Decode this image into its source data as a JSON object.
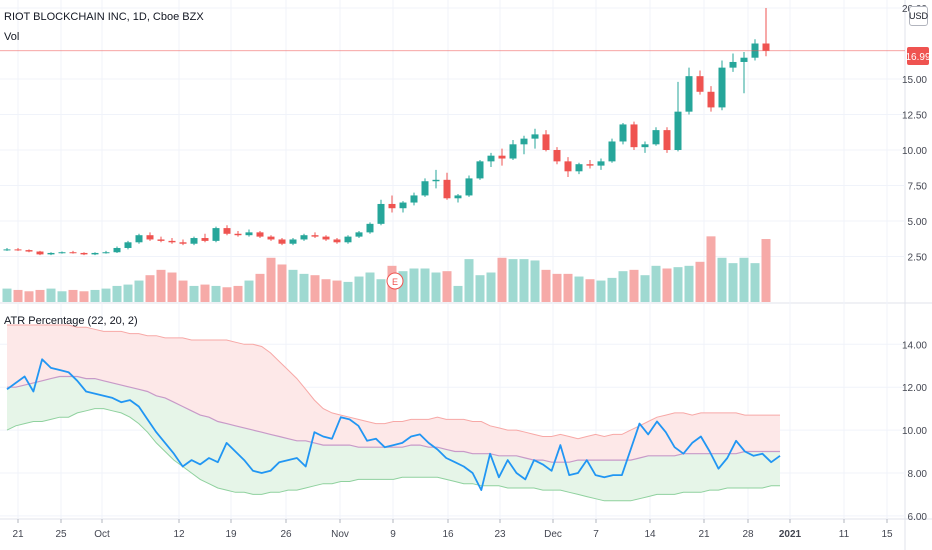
{
  "header": {
    "symbol": "RIOT BLOCKCHAIN INC, 1D, Cboe BZX",
    "volume_label": "Vol",
    "currency": "USD"
  },
  "indicator": {
    "label": "ATR Percentage (22, 20, 2)"
  },
  "earnings_marker": "E",
  "colors": {
    "up": "#26a69a",
    "down": "#ef5350",
    "vol_up": "#9fd9d1",
    "vol_down": "#f6aaa8",
    "atr_line": "#2196f3",
    "upper_band": "#f7a8a6",
    "lower_band": "#8fd19e",
    "mid_band": "#c89ac8",
    "upper_fill": "#fde8e8",
    "lower_fill": "#e6f5e8",
    "price_line": "#ef5350"
  },
  "chart_data": [
    {
      "type": "candlestick",
      "title": "RIOT BLOCKCHAIN INC, 1D, Cboe BZX",
      "x_ticks": [
        "21",
        "25",
        "Oct",
        "12",
        "19",
        "26",
        "Nov",
        "9",
        "16",
        "23",
        "Dec",
        "7",
        "14",
        "21",
        "28",
        "2021",
        "11",
        "15"
      ],
      "y_ticks": [
        "2.50",
        "5.00",
        "7.50",
        "10.00",
        "12.50",
        "15.00",
        "20.00"
      ],
      "ylim": [
        0,
        20
      ],
      "last_price": "16.99",
      "candles": [
        [
          3.0,
          3.1,
          2.9,
          3.0
        ],
        [
          3.0,
          3.1,
          2.9,
          2.95
        ],
        [
          2.95,
          3.0,
          2.8,
          2.85
        ],
        [
          2.85,
          2.9,
          2.6,
          2.65
        ],
        [
          2.65,
          2.8,
          2.6,
          2.75
        ],
        [
          2.75,
          2.85,
          2.7,
          2.8
        ],
        [
          2.8,
          2.9,
          2.7,
          2.75
        ],
        [
          2.75,
          2.8,
          2.6,
          2.65
        ],
        [
          2.65,
          2.8,
          2.6,
          2.75
        ],
        [
          2.75,
          2.9,
          2.7,
          2.8
        ],
        [
          2.8,
          3.2,
          2.75,
          3.1
        ],
        [
          3.1,
          3.6,
          3.0,
          3.5
        ],
        [
          3.5,
          4.1,
          3.4,
          4.0
        ],
        [
          4.0,
          4.2,
          3.6,
          3.7
        ],
        [
          3.7,
          3.9,
          3.5,
          3.6
        ],
        [
          3.6,
          3.8,
          3.4,
          3.5
        ],
        [
          3.5,
          3.7,
          3.3,
          3.4
        ],
        [
          3.4,
          3.9,
          3.3,
          3.8
        ],
        [
          3.8,
          4.1,
          3.5,
          3.6
        ],
        [
          3.6,
          4.6,
          3.5,
          4.5
        ],
        [
          4.5,
          4.7,
          4.0,
          4.1
        ],
        [
          4.1,
          4.3,
          3.9,
          4.0
        ],
        [
          4.0,
          4.4,
          3.9,
          4.2
        ],
        [
          4.2,
          4.3,
          3.8,
          3.9
        ],
        [
          3.9,
          4.0,
          3.6,
          3.7
        ],
        [
          3.7,
          3.8,
          3.3,
          3.4
        ],
        [
          3.4,
          3.8,
          3.3,
          3.7
        ],
        [
          3.7,
          4.1,
          3.6,
          4.0
        ],
        [
          4.0,
          4.2,
          3.8,
          3.9
        ],
        [
          3.9,
          4.0,
          3.6,
          3.7
        ],
        [
          3.7,
          3.8,
          3.4,
          3.5
        ],
        [
          3.5,
          4.0,
          3.4,
          3.9
        ],
        [
          3.9,
          4.3,
          3.8,
          4.2
        ],
        [
          4.2,
          4.9,
          4.1,
          4.8
        ],
        [
          4.8,
          6.5,
          4.7,
          6.2
        ],
        [
          6.2,
          6.8,
          5.6,
          5.9
        ],
        [
          5.9,
          6.4,
          5.6,
          6.3
        ],
        [
          6.3,
          7.0,
          6.1,
          6.8
        ],
        [
          6.8,
          8.0,
          6.7,
          7.8
        ],
        [
          7.8,
          8.6,
          7.3,
          7.9
        ],
        [
          7.9,
          8.4,
          6.5,
          6.6
        ],
        [
          6.6,
          6.9,
          6.3,
          6.8
        ],
        [
          6.8,
          8.2,
          6.7,
          8.0
        ],
        [
          8.0,
          9.3,
          7.9,
          9.2
        ],
        [
          9.2,
          9.8,
          8.8,
          9.6
        ],
        [
          9.6,
          10.1,
          8.9,
          9.4
        ],
        [
          9.4,
          10.7,
          9.3,
          10.4
        ],
        [
          10.4,
          11.0,
          9.7,
          10.8
        ],
        [
          10.8,
          11.5,
          10.1,
          11.1
        ],
        [
          11.1,
          11.4,
          9.9,
          10.0
        ],
        [
          10.0,
          10.2,
          9.0,
          9.2
        ],
        [
          9.2,
          9.5,
          8.1,
          8.5
        ],
        [
          8.5,
          9.1,
          8.3,
          9.0
        ],
        [
          9.0,
          9.3,
          8.7,
          8.9
        ],
        [
          8.9,
          9.4,
          8.6,
          9.2
        ],
        [
          9.2,
          10.8,
          9.1,
          10.6
        ],
        [
          10.6,
          11.9,
          10.4,
          11.8
        ],
        [
          11.8,
          12.0,
          10.0,
          10.2
        ],
        [
          10.2,
          10.6,
          9.8,
          10.4
        ],
        [
          10.4,
          11.6,
          10.3,
          11.4
        ],
        [
          11.4,
          11.6,
          9.8,
          10.0
        ],
        [
          10.0,
          14.8,
          9.9,
          12.7
        ],
        [
          12.7,
          15.8,
          12.5,
          15.2
        ],
        [
          15.2,
          15.6,
          13.9,
          14.1
        ],
        [
          14.1,
          14.5,
          12.7,
          13.0
        ],
        [
          13.0,
          16.3,
          12.8,
          15.8
        ],
        [
          15.8,
          16.8,
          15.5,
          16.2
        ],
        [
          16.2,
          16.9,
          14.0,
          16.5
        ],
        [
          16.5,
          17.8,
          16.3,
          17.5
        ],
        [
          17.5,
          20.0,
          16.6,
          16.99
        ]
      ]
    },
    {
      "type": "bar",
      "title": "Vol",
      "values": [
        1.0,
        0.9,
        0.8,
        0.9,
        1.0,
        0.8,
        0.9,
        0.8,
        0.9,
        1.0,
        1.2,
        1.3,
        1.6,
        2.0,
        2.4,
        2.2,
        1.6,
        1.2,
        1.3,
        1.2,
        1.1,
        1.2,
        1.6,
        2.1,
        3.3,
        2.8,
        2.4,
        2.1,
        2.0,
        1.7,
        1.6,
        1.5,
        1.9,
        2.2,
        1.7,
        2.7,
        2.3,
        2.5,
        2.5,
        2.2,
        2.3,
        1.2,
        3.2,
        2.0,
        2.2,
        3.3,
        3.2,
        3.2,
        3.1,
        2.4,
        2.1,
        2.1,
        1.9,
        1.7,
        1.6,
        1.8,
        2.3,
        2.4,
        2.0,
        2.7,
        2.5,
        2.6,
        2.7,
        3.0,
        4.9,
        3.3,
        2.9,
        3.3,
        2.9,
        4.7
      ],
      "directions": [
        "u",
        "d",
        "d",
        "d",
        "u",
        "u",
        "d",
        "d",
        "u",
        "u",
        "u",
        "u",
        "u",
        "d",
        "d",
        "d",
        "d",
        "u",
        "d",
        "u",
        "d",
        "d",
        "u",
        "d",
        "d",
        "d",
        "u",
        "u",
        "d",
        "d",
        "d",
        "u",
        "u",
        "u",
        "u",
        "d",
        "u",
        "u",
        "u",
        "u",
        "d",
        "u",
        "u",
        "u",
        "u",
        "d",
        "u",
        "u",
        "u",
        "d",
        "d",
        "d",
        "u",
        "d",
        "u",
        "u",
        "u",
        "d",
        "u",
        "u",
        "d",
        "u",
        "u",
        "d",
        "d",
        "u",
        "u",
        "u",
        "u",
        "d"
      ]
    },
    {
      "type": "line",
      "title": "ATR Percentage (22, 20, 2)",
      "y_ticks": [
        "6.00",
        "8.00",
        "10.00",
        "12.00",
        "14.00"
      ],
      "ylim": [
        5.9,
        15.6
      ],
      "series": [
        {
          "values": [
            11.9,
            12.2,
            12.5,
            11.8,
            13.3,
            12.9,
            12.8,
            12.7,
            12.3,
            11.8,
            11.7,
            11.6,
            11.5,
            11.3,
            11.4,
            11.1,
            10.5,
            9.9,
            9.4,
            8.9,
            8.3,
            8.6,
            8.4,
            8.7,
            8.5,
            9.4,
            9.0,
            8.6,
            8.1,
            8.0,
            8.1,
            8.5,
            8.6,
            8.7,
            8.3,
            9.9,
            9.7,
            9.6,
            10.6,
            10.5,
            10.2,
            9.5,
            9.6,
            9.2,
            9.3,
            9.4,
            9.7,
            9.8,
            9.4,
            9.1,
            8.7,
            8.5,
            8.3,
            8.0,
            7.2,
            8.9,
            7.8,
            8.6,
            8.0,
            7.7,
            8.6,
            8.4,
            8.1,
            9.3,
            7.9,
            8.0,
            8.6,
            7.9,
            7.8,
            7.9,
            7.9,
            9.1,
            10.3,
            9.8,
            10.4,
            9.9,
            9.2,
            8.9,
            9.4,
            9.7,
            9.0,
            8.2,
            8.7,
            9.5,
            9.0,
            8.8,
            8.9,
            8.5,
            8.8
          ]
        },
        {
          "values": [
            14.9,
            14.9,
            14.9,
            14.9,
            14.9,
            14.9,
            14.9,
            14.9,
            14.8,
            14.8,
            14.7,
            14.6,
            14.6,
            14.6,
            14.5,
            14.5,
            14.4,
            14.4,
            14.3,
            14.3,
            14.3,
            14.2,
            14.2,
            14.2,
            14.2,
            14.2,
            14.1,
            14.0,
            14.0,
            13.9,
            13.6,
            13.2,
            12.8,
            12.4,
            11.9,
            11.4,
            11.0,
            10.8,
            10.7,
            10.6,
            10.5,
            10.4,
            10.3,
            10.3,
            10.4,
            10.4,
            10.5,
            10.5,
            10.5,
            10.6,
            10.5,
            10.5,
            10.5,
            10.4,
            10.4,
            10.2,
            10.1,
            10.0,
            10.0,
            9.9,
            9.8,
            9.7,
            9.7,
            9.8,
            9.7,
            9.6,
            9.7,
            9.8,
            9.7,
            9.8,
            9.8,
            10.0,
            10.2,
            10.4,
            10.6,
            10.7,
            10.8,
            10.8,
            10.7,
            10.8,
            10.8,
            10.8,
            10.8,
            10.8,
            10.7,
            10.7,
            10.7,
            10.7,
            10.7
          ]
        },
        {
          "values": [
            12.0,
            12.0,
            12.1,
            12.2,
            12.3,
            12.4,
            12.5,
            12.5,
            12.5,
            12.4,
            12.4,
            12.3,
            12.2,
            12.1,
            12.0,
            11.9,
            11.8,
            11.6,
            11.5,
            11.3,
            11.1,
            10.9,
            10.7,
            10.6,
            10.4,
            10.3,
            10.2,
            10.1,
            10.0,
            9.9,
            9.8,
            9.7,
            9.6,
            9.5,
            9.5,
            9.4,
            9.3,
            9.3,
            9.3,
            9.3,
            9.2,
            9.2,
            9.2,
            9.2,
            9.2,
            9.2,
            9.3,
            9.3,
            9.2,
            9.2,
            9.1,
            9.0,
            9.0,
            8.9,
            8.9,
            8.9,
            8.8,
            8.8,
            8.8,
            8.7,
            8.6,
            8.6,
            8.5,
            8.5,
            8.5,
            8.6,
            8.6,
            8.6,
            8.6,
            8.6,
            8.6,
            8.6,
            8.7,
            8.8,
            8.8,
            8.8,
            8.8,
            8.9,
            8.9,
            8.9,
            8.9,
            8.9,
            8.9,
            8.9,
            9.0,
            9.0,
            9.0,
            9.0,
            9.0
          ]
        },
        {
          "values": [
            10.0,
            10.2,
            10.3,
            10.4,
            10.4,
            10.5,
            10.6,
            10.6,
            10.8,
            10.9,
            11.0,
            11.0,
            10.9,
            10.8,
            10.6,
            10.3,
            9.9,
            9.4,
            9.0,
            8.6,
            8.3,
            8.0,
            7.7,
            7.5,
            7.3,
            7.2,
            7.1,
            7.1,
            7.0,
            7.0,
            7.1,
            7.1,
            7.2,
            7.2,
            7.3,
            7.4,
            7.5,
            7.5,
            7.6,
            7.6,
            7.7,
            7.7,
            7.7,
            7.7,
            7.7,
            7.8,
            7.8,
            7.8,
            7.8,
            7.8,
            7.7,
            7.6,
            7.5,
            7.5,
            7.4,
            7.4,
            7.4,
            7.3,
            7.3,
            7.3,
            7.3,
            7.2,
            7.2,
            7.2,
            7.1,
            7.0,
            6.9,
            6.8,
            6.7,
            6.7,
            6.7,
            6.7,
            6.8,
            6.9,
            7.0,
            7.0,
            7.0,
            7.1,
            7.1,
            7.1,
            7.2,
            7.2,
            7.3,
            7.3,
            7.3,
            7.3,
            7.3,
            7.4,
            7.4
          ]
        }
      ]
    }
  ]
}
